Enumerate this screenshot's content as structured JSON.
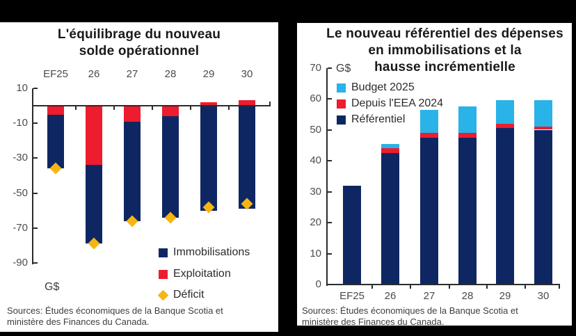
{
  "colors": {
    "background": "#000000",
    "panel": "#ffffff",
    "navy": "#0e2763",
    "red": "#ed1c2e",
    "gold": "#f7b515",
    "cyan": "#29b3e8",
    "axis": "#2b2b2b"
  },
  "chart_data": [
    {
      "type": "bar",
      "stacked": true,
      "title": "L'équilibrage du nouveau solde opérationnel",
      "title_lines": [
        "L'équilibrage du nouveau",
        "solde opérationnel"
      ],
      "unit_label": "G$",
      "categories": [
        "EF25",
        "26",
        "27",
        "28",
        "29",
        "30"
      ],
      "category_labels_position": "top",
      "ylim": [
        -90,
        10
      ],
      "yticks": [
        10,
        -10,
        -30,
        -50,
        -70,
        -90
      ],
      "grid": false,
      "legend_position": "inside-bottom-right",
      "series": [
        {
          "name": "Exploitation",
          "color": "#ed1c2e",
          "values": [
            -5,
            -34,
            -9,
            -6,
            2,
            3
          ]
        },
        {
          "name": "Immobilisations",
          "color": "#0e2763",
          "values": [
            -31,
            -45,
            -57,
            -58,
            -60,
            -59
          ]
        }
      ],
      "markers": {
        "name": "Déficit",
        "color": "#f7b515",
        "shape": "diamond",
        "values": [
          -36,
          -79,
          -66,
          -64,
          -58,
          -56
        ]
      },
      "legend": [
        {
          "label": "Immobilisations",
          "color": "#0e2763",
          "shape": "square"
        },
        {
          "label": "Exploitation",
          "color": "#ed1c2e",
          "shape": "square"
        },
        {
          "label": "Déficit",
          "color": "#f7b515",
          "shape": "diamond"
        }
      ],
      "source_lines": [
        "Sources: Études économiques de la Banque Scotia et",
        "ministère des Finances du Canada."
      ]
    },
    {
      "type": "bar",
      "stacked": true,
      "title": "Le nouveau référentiel des dépenses en immobilisations et la hausse incrémentielle",
      "title_lines": [
        "Le nouveau référentiel des dépenses",
        "en immobilisations et la",
        "hausse incrémentielle"
      ],
      "unit_label": "G$",
      "categories": [
        "EF25",
        "26",
        "27",
        "28",
        "29",
        "30"
      ],
      "category_labels_position": "bottom",
      "ylim": [
        0,
        70
      ],
      "yticks": [
        0,
        10,
        20,
        30,
        40,
        50,
        60,
        70
      ],
      "grid": false,
      "legend_position": "inside-top-left",
      "series": [
        {
          "name": "Référentiel",
          "color": "#0e2763",
          "values": [
            32,
            42.5,
            47.5,
            47.5,
            50.5,
            50
          ]
        },
        {
          "name": "Depuis l'EEA 2024",
          "color": "#ed1c2e",
          "values": [
            0,
            1.5,
            1.5,
            1.5,
            1.5,
            1
          ]
        },
        {
          "name": "Budget 2025",
          "color": "#29b3e8",
          "values": [
            0,
            1.5,
            7.5,
            8.5,
            7.5,
            8.5
          ]
        }
      ],
      "legend": [
        {
          "label": "Budget 2025",
          "color": "#29b3e8",
          "shape": "square"
        },
        {
          "label": "Depuis l'EEA 2024",
          "color": "#ed1c2e",
          "shape": "square"
        },
        {
          "label": "Référentiel",
          "color": "#0e2763",
          "shape": "square"
        }
      ],
      "source_lines": [
        "Sources: Études économiques de la Banque Scotia et",
        "ministère des Finances du Canada."
      ]
    }
  ]
}
